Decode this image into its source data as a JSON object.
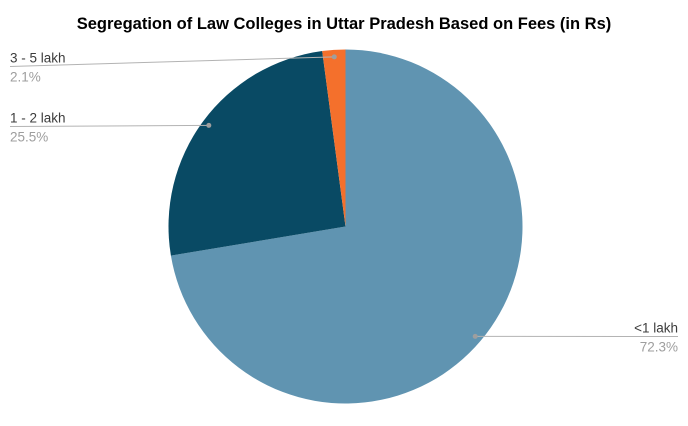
{
  "title": "Segregation of Law Colleges in Uttar Pradesh Based on Fees (in Rs)",
  "chart_data": {
    "type": "pie",
    "title": "Segregation of Law Colleges in Uttar Pradesh Based on Fees (in Rs)",
    "categories": [
      "<1 lakh",
      "1 - 2 lakh",
      "3 - 5 lakh"
    ],
    "values": [
      72.3,
      25.5,
      2.1
    ],
    "value_labels": [
      "72.3%",
      "25.5%",
      "2.1%"
    ],
    "colors": [
      "#6094B1",
      "#094A64",
      "#F4702C"
    ],
    "start_angle_deg": 0,
    "direction": "clockwise",
    "legend_position": "none",
    "label_style": "outside-callout",
    "background_color": "#FFFFFF",
    "title_color": "#000000",
    "label_text_color": "#3C3C3C",
    "percent_text_color": "#9E9E9E",
    "callout_line_color": "#B3B3B3",
    "callout_dot_color": "#9E9E9E"
  }
}
